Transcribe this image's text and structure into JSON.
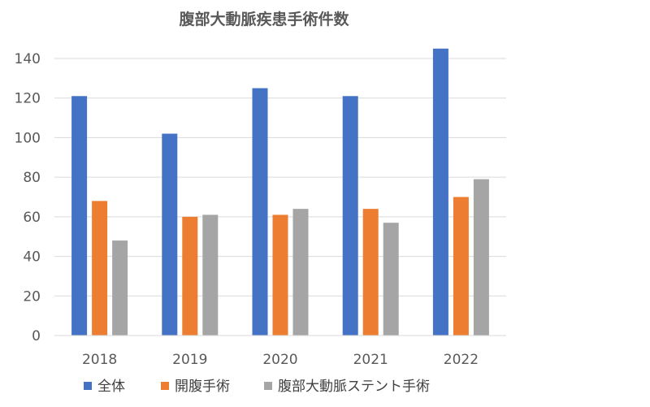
{
  "chart_data": {
    "type": "bar",
    "title": "腹部大動脈疾患手術件数",
    "xlabel": "",
    "ylabel": "",
    "categories": [
      "2018",
      "2019",
      "2020",
      "2021",
      "2022"
    ],
    "ylim": [
      0,
      140
    ],
    "yticks": [
      0,
      20,
      40,
      60,
      80,
      100,
      120,
      140
    ],
    "grid": true,
    "legend_position": "bottom",
    "series": [
      {
        "name": "全体",
        "color": "#4472c4",
        "values": [
          121,
          102,
          125,
          121,
          145
        ]
      },
      {
        "name": "開腹手術",
        "color": "#ed7d31",
        "values": [
          68,
          60,
          61,
          64,
          70
        ]
      },
      {
        "name": "腹部大動脈ステント手術",
        "color": "#a5a5a5",
        "values": [
          48,
          61,
          64,
          57,
          79
        ]
      }
    ]
  }
}
